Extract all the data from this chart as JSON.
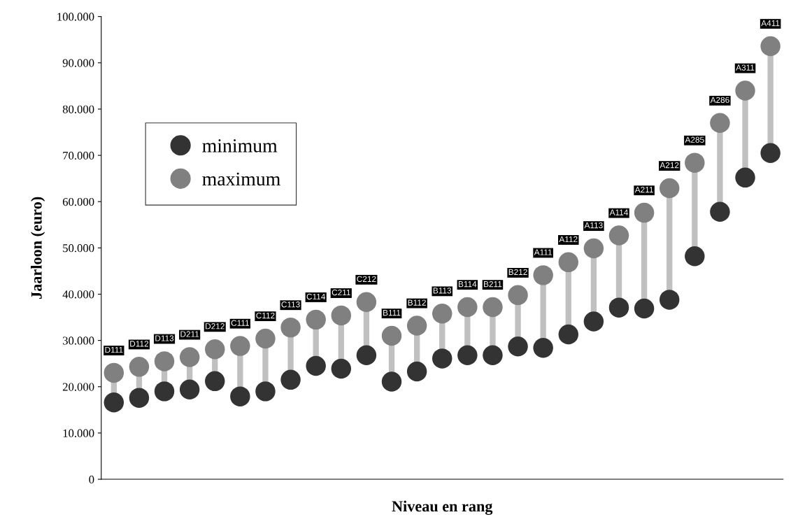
{
  "chart_data": {
    "type": "scatter",
    "xlabel": "Niveau en rang",
    "ylabel": "Jaarloon (euro)",
    "categories": [
      "D111",
      "D112",
      "D113",
      "D211",
      "D212",
      "C111",
      "C112",
      "C113",
      "C114",
      "C211",
      "C212",
      "B111",
      "B112",
      "B113",
      "B114",
      "B211",
      "B212",
      "A111",
      "A112",
      "A113",
      "A114",
      "A211",
      "A212",
      "A285",
      "A286",
      "A311",
      "A411"
    ],
    "series": [
      {
        "name": "minimum",
        "color": "#333333",
        "values": [
          16600,
          17600,
          19000,
          19400,
          21200,
          17900,
          19000,
          21500,
          24500,
          23900,
          26800,
          21100,
          23300,
          26100,
          26800,
          26800,
          28700,
          28400,
          31300,
          34100,
          37100,
          36900,
          38800,
          48200,
          57800,
          65200,
          70500
        ]
      },
      {
        "name": "maximum",
        "color": "#808080",
        "values": [
          23000,
          24300,
          25500,
          26400,
          28100,
          28800,
          30400,
          32800,
          34500,
          35400,
          38300,
          31000,
          33200,
          35800,
          37200,
          37200,
          39800,
          44100,
          46900,
          49900,
          52700,
          57600,
          62900,
          68400,
          77000,
          84000,
          93600
        ]
      }
    ],
    "ylim": [
      0,
      100000
    ],
    "yticks": [
      0,
      {
        "value": 10000,
        "label": "10.000"
      },
      {
        "value": 20000,
        "label": "20.000"
      },
      {
        "value": 30000,
        "label": "30.000"
      },
      {
        "value": 40000,
        "label": "40.000"
      },
      {
        "value": 50000,
        "label": "50.000"
      },
      {
        "value": 60000,
        "label": "60.000"
      },
      {
        "value": 70000,
        "label": "70.000"
      },
      {
        "value": 80000,
        "label": "80.000"
      },
      {
        "value": 90000,
        "label": "90.000"
      },
      {
        "value": 100000,
        "label": "100.000"
      }
    ],
    "tick_labels": "y",
    "grid": false,
    "legend": "upper left",
    "marker": "circle"
  }
}
